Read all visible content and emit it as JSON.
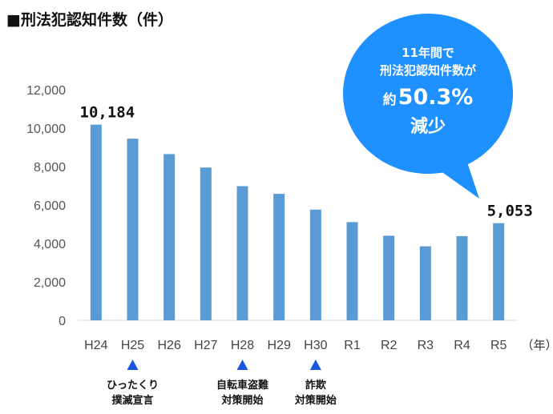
{
  "title": "■刑法犯認知件数（件）",
  "colors": {
    "bar": "#5b9bd5",
    "bubble": "#1e90ff",
    "triangle": "#1a56db",
    "grid": "#d9d9d9"
  },
  "unit_label": "（年）",
  "bubble": {
    "lines": [
      "11年間で",
      "刑法犯認知件数が"
    ],
    "percent_prefix": "約",
    "percent_value": "50.3%",
    "last_line": "減少"
  },
  "annotations": [
    {
      "category": "H25",
      "lines": [
        "ひったくり",
        "撲滅宣言"
      ]
    },
    {
      "category": "H28",
      "lines": [
        "自転車盗難",
        "対策開始"
      ]
    },
    {
      "category": "H30",
      "lines": [
        "詐欺",
        "対策開始"
      ]
    }
  ],
  "chart_data": {
    "type": "bar",
    "categories": [
      "H24",
      "H25",
      "H26",
      "H27",
      "H28",
      "H29",
      "H30",
      "R1",
      "R2",
      "R3",
      "R4",
      "R5"
    ],
    "values": [
      10184,
      9450,
      8650,
      7950,
      6980,
      6580,
      5760,
      5110,
      4400,
      3850,
      4380,
      5053
    ],
    "data_labels": [
      {
        "category": "H24",
        "text": "10,184"
      },
      {
        "category": "R5",
        "text": "5,053"
      }
    ],
    "yticks": [
      "0",
      "2,000",
      "4,000",
      "6,000",
      "8,000",
      "10,000",
      "12,000"
    ],
    "ylim": [
      0,
      12000
    ],
    "grid": false,
    "title": "",
    "xlabel": "",
    "ylabel": ""
  }
}
